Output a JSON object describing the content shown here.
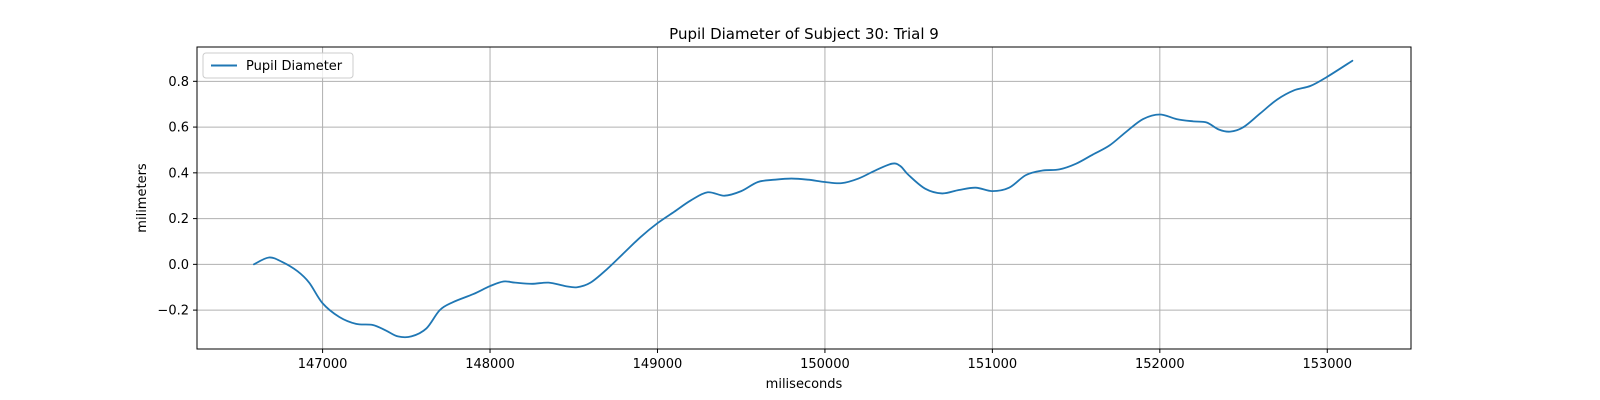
{
  "chart_data": {
    "type": "line",
    "title": "Pupil Diameter of Subject 30: Trial 9",
    "xlabel": "miliseconds",
    "ylabel": "milimeters",
    "xlim": [
      146250,
      153500
    ],
    "ylim": [
      -0.37,
      0.95
    ],
    "xticks": [
      147000,
      148000,
      149000,
      150000,
      151000,
      152000,
      153000
    ],
    "yticks": [
      -0.2,
      0.0,
      0.2,
      0.4,
      0.6,
      0.8
    ],
    "ytick_labels": [
      "−0.2",
      "0.0",
      "0.2",
      "0.4",
      "0.6",
      "0.8"
    ],
    "grid": true,
    "legend_position": "top-left",
    "series": [
      {
        "name": "Pupil Diameter",
        "color": "#1f77b4",
        "x": [
          146590,
          146680,
          146760,
          146850,
          146920,
          147000,
          147100,
          147200,
          147300,
          147380,
          147450,
          147530,
          147620,
          147700,
          147780,
          147900,
          148000,
          148080,
          148150,
          148250,
          148350,
          148450,
          148520,
          148600,
          148700,
          148800,
          148900,
          149000,
          149100,
          149200,
          149300,
          149400,
          149500,
          149600,
          149700,
          149800,
          149900,
          150000,
          150100,
          150200,
          150300,
          150400,
          150450,
          150500,
          150600,
          150700,
          150800,
          150900,
          151000,
          151100,
          151200,
          151300,
          151400,
          151500,
          151600,
          151700,
          151800,
          151900,
          152000,
          152100,
          152200,
          152280,
          152350,
          152420,
          152500,
          152600,
          152700,
          152800,
          152900,
          153000,
          153150
        ],
        "y": [
          0.0,
          0.03,
          0.01,
          -0.03,
          -0.08,
          -0.17,
          -0.23,
          -0.26,
          -0.265,
          -0.29,
          -0.315,
          -0.315,
          -0.28,
          -0.2,
          -0.165,
          -0.13,
          -0.095,
          -0.075,
          -0.08,
          -0.085,
          -0.08,
          -0.095,
          -0.1,
          -0.08,
          -0.02,
          0.05,
          0.12,
          0.18,
          0.23,
          0.28,
          0.315,
          0.3,
          0.32,
          0.36,
          0.37,
          0.375,
          0.37,
          0.36,
          0.355,
          0.375,
          0.41,
          0.44,
          0.43,
          0.39,
          0.33,
          0.31,
          0.325,
          0.335,
          0.32,
          0.335,
          0.39,
          0.41,
          0.415,
          0.44,
          0.48,
          0.52,
          0.58,
          0.635,
          0.655,
          0.635,
          0.625,
          0.62,
          0.59,
          0.58,
          0.6,
          0.66,
          0.72,
          0.76,
          0.78,
          0.82,
          0.89
        ]
      }
    ]
  }
}
